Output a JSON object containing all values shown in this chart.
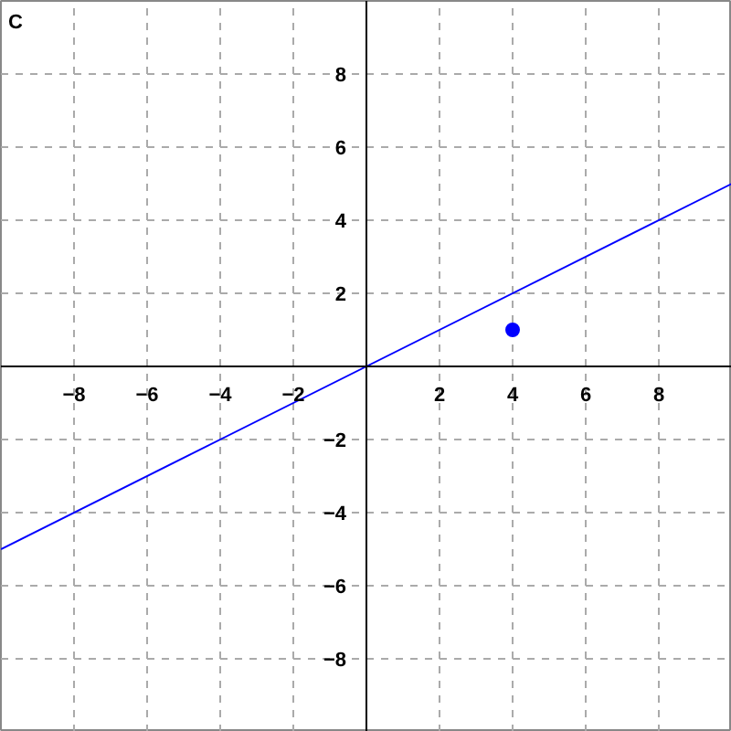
{
  "chart_data": {
    "type": "line",
    "annotations": [
      "C"
    ],
    "xlim": [
      -10,
      10
    ],
    "ylim": [
      -10,
      10
    ],
    "xticks": [
      -8,
      -6,
      -4,
      -2,
      2,
      4,
      6,
      8
    ],
    "yticks": [
      -8,
      -6,
      -4,
      -2,
      2,
      4,
      6,
      8
    ],
    "grid": true,
    "series": [
      {
        "color": "#0000ff",
        "x": [
          -10,
          10
        ],
        "values": [
          -5,
          5
        ],
        "marker": "none"
      },
      {
        "type": "scatter",
        "color": "#0000ff",
        "x": [
          4
        ],
        "values": [
          1
        ],
        "marker": "circle"
      }
    ]
  }
}
